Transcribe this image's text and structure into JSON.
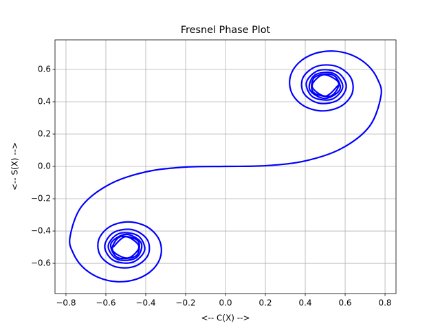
{
  "chart_data": {
    "type": "line",
    "title": "Fresnel Phase Plot",
    "x_label": "<-- C(X) -->",
    "y_label": "<-- S(X) -->",
    "grid": true,
    "xlim": [
      -0.855,
      0.855
    ],
    "ylim": [
      -0.787,
      0.783
    ],
    "xticks": [
      {
        "value": -0.8,
        "label": "−0.8"
      },
      {
        "value": -0.6,
        "label": "−0.6"
      },
      {
        "value": -0.4,
        "label": "−0.4"
      },
      {
        "value": -0.2,
        "label": "−0.2"
      },
      {
        "value": 0,
        "label": "0.0"
      },
      {
        "value": 0.2,
        "label": "0.2"
      },
      {
        "value": 0.4,
        "label": "0.4"
      },
      {
        "value": 0.6,
        "label": "0.6"
      },
      {
        "value": 0.8,
        "label": "0.8"
      }
    ],
    "yticks": [
      {
        "value": -0.6,
        "label": "−0.6"
      },
      {
        "value": -0.4,
        "label": "−0.4"
      },
      {
        "value": -0.2,
        "label": "−0.2"
      },
      {
        "value": 0,
        "label": "0.0"
      },
      {
        "value": 0.2,
        "label": "0.2"
      },
      {
        "value": 0.4,
        "label": "0.4"
      },
      {
        "value": 0.6,
        "label": "0.6"
      }
    ],
    "series": [
      {
        "color": "#0000ff",
        "x": [
          -0.564,
          -0.501,
          -0.434,
          -0.49,
          -0.567,
          -0.527,
          -0.439,
          -0.448,
          -0.541,
          -0.574,
          -0.4984,
          -0.4223,
          -0.4481,
          -0.542,
          -0.588,
          -0.5326,
          -0.4385,
          -0.4058,
          -0.4664,
          -0.5616,
          -0.6058,
          -0.5624,
          -0.4675,
          -0.3925,
          -0.3889,
          -0.4574,
          -0.555,
          -0.6266,
          -0.6363,
          -0.5816,
          -0.4882,
          -0.3944,
          -0.3336,
          -0.3238,
          -0.3655,
          -0.4453,
          -0.5431,
          -0.6386,
          -0.7154,
          -0.7638,
          -0.7799,
          -0.7228,
          -0.5811,
          -0.3975,
          -0.1999,
          0,
          0.1999,
          0.3975,
          0.5811,
          0.7228,
          0.7799,
          0.7638,
          0.7154,
          0.6386,
          0.5431,
          0.4453,
          0.3655,
          0.3238,
          0.3336,
          0.3944,
          0.4882,
          0.5816,
          0.6363,
          0.6266,
          0.555,
          0.4574,
          0.3889,
          0.3925,
          0.4675,
          0.5624,
          0.6058,
          0.5616,
          0.4664,
          0.4058,
          0.4385,
          0.5326,
          0.588,
          0.542,
          0.4481,
          0.4223,
          0.4984,
          0.574,
          0.541,
          0.448,
          0.439,
          0.527,
          0.567,
          0.49,
          0.434,
          0.501,
          0.564
        ],
        "values": [
          -0.5,
          -0.435,
          -0.496,
          -0.567,
          -0.517,
          -0.435,
          -0.461,
          -0.553,
          -0.564,
          -0.477,
          -0.4205,
          -0.4752,
          -0.5656,
          -0.575,
          -0.4923,
          -0.4152,
          -0.4296,
          -0.5192,
          -0.5933,
          -0.5818,
          -0.4963,
          -0.4101,
          -0.3915,
          -0.4529,
          -0.55,
          -0.6192,
          -0.6197,
          -0.5532,
          -0.4557,
          -0.3743,
          -0.3434,
          -0.3733,
          -0.4509,
          -0.5492,
          -0.6389,
          -0.6975,
          -0.7135,
          -0.6863,
          -0.6234,
          -0.5365,
          -0.4383,
          -0.2493,
          -0.1105,
          -0.0334,
          -0.0042,
          0,
          0.0042,
          0.0334,
          0.1105,
          0.2493,
          0.4383,
          0.5365,
          0.6234,
          0.6863,
          0.7135,
          0.6975,
          0.6389,
          0.5492,
          0.4509,
          0.3733,
          0.3434,
          0.3743,
          0.4557,
          0.5532,
          0.6197,
          0.6192,
          0.55,
          0.4529,
          0.3915,
          0.4101,
          0.4963,
          0.5818,
          0.5933,
          0.5192,
          0.4296,
          0.4152,
          0.4923,
          0.575,
          0.5656,
          0.4752,
          0.4205,
          0.477,
          0.564,
          0.553,
          0.461,
          0.435,
          0.517,
          0.567,
          0.496,
          0.435,
          0.5
        ]
      }
    ]
  }
}
